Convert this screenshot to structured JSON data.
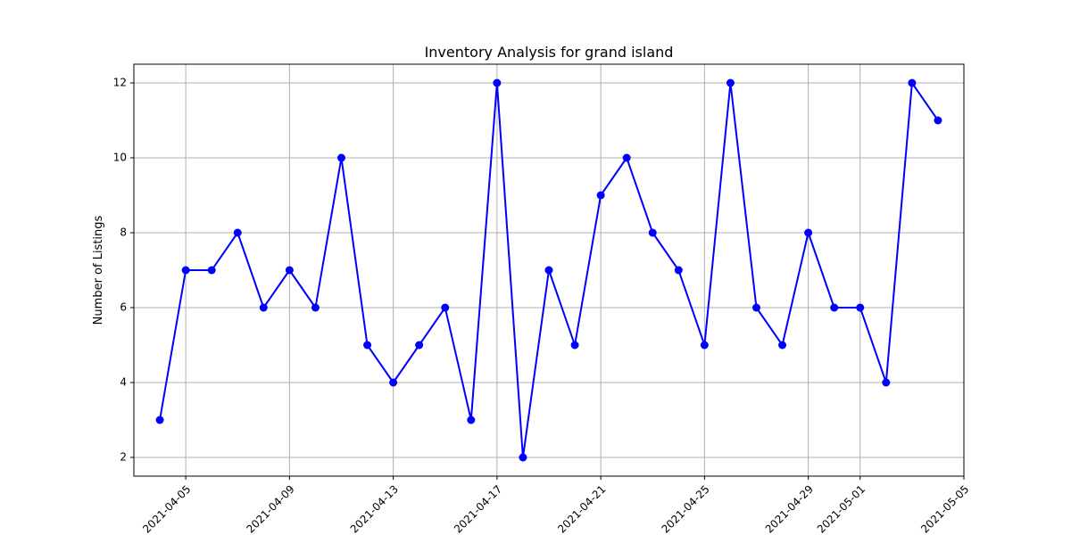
{
  "chart_data": {
    "type": "line",
    "title": "Inventory Analysis for grand island",
    "xlabel": "",
    "ylabel": "Number of Listings",
    "grid": true,
    "legend": "none",
    "x": [
      "2021-04-04",
      "2021-04-05",
      "2021-04-06",
      "2021-04-07",
      "2021-04-08",
      "2021-04-09",
      "2021-04-10",
      "2021-04-11",
      "2021-04-12",
      "2021-04-13",
      "2021-04-14",
      "2021-04-15",
      "2021-04-16",
      "2021-04-17",
      "2021-04-18",
      "2021-04-19",
      "2021-04-20",
      "2021-04-21",
      "2021-04-22",
      "2021-04-23",
      "2021-04-24",
      "2021-04-25",
      "2021-04-26",
      "2021-04-27",
      "2021-04-28",
      "2021-04-29",
      "2021-04-30",
      "2021-05-01",
      "2021-05-02",
      "2021-05-03",
      "2021-05-04"
    ],
    "series": [
      {
        "values": [
          3,
          7,
          7,
          8,
          6,
          7,
          6,
          10,
          5,
          4,
          5,
          6,
          3,
          12,
          2,
          7,
          5,
          9,
          10,
          8,
          7,
          5,
          12,
          6,
          5,
          8,
          6,
          6,
          4,
          12,
          11
        ],
        "color": "#0000ff",
        "marker": "circle"
      }
    ],
    "xticks": [
      "2021-04-05",
      "2021-04-09",
      "2021-04-13",
      "2021-04-17",
      "2021-04-21",
      "2021-04-25",
      "2021-04-29",
      "2021-05-01",
      "2021-05-05"
    ],
    "yticks": [
      2,
      4,
      6,
      8,
      10,
      12
    ],
    "xlim": [
      "2021-04-03",
      "2021-05-05"
    ],
    "ylim": [
      1.5,
      12.5
    ]
  }
}
